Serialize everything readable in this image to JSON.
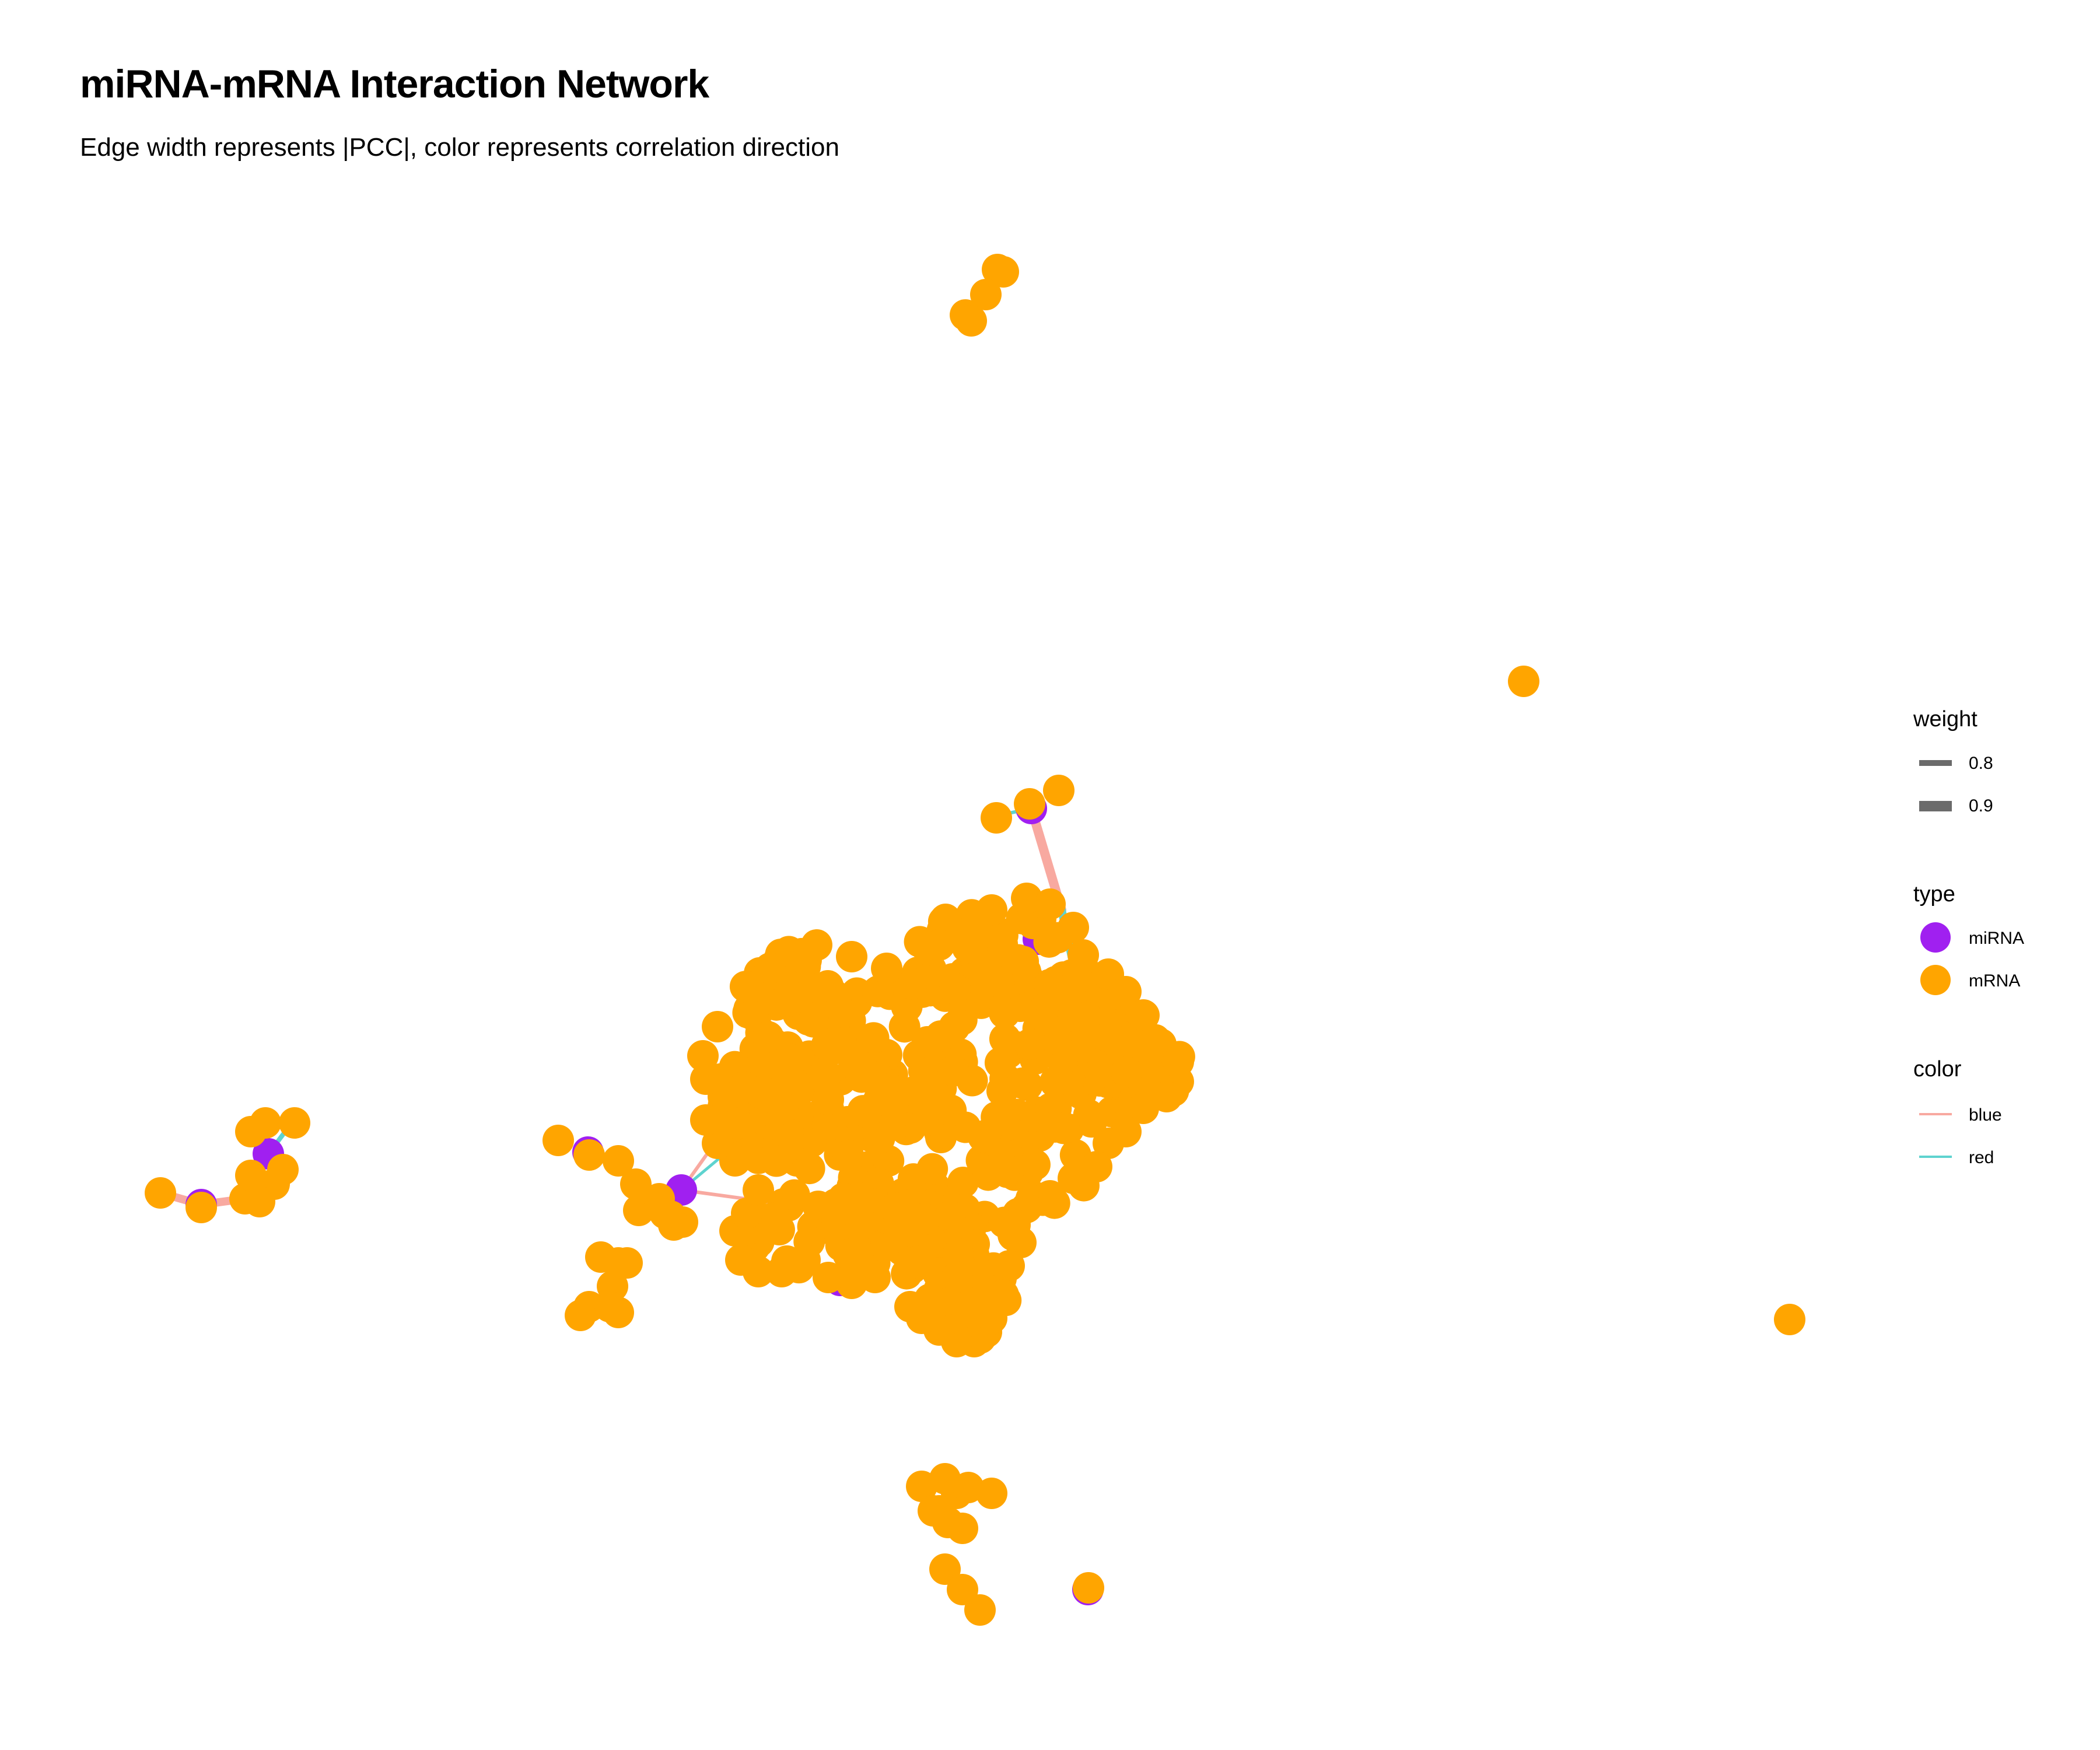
{
  "title": "miRNA-mRNA Interaction Network",
  "subtitle": "Edge width represents |PCC|, color represents correlation direction",
  "colors": {
    "mirna": "#A020F0",
    "mrna": "#FFA500",
    "edge_blue_label": "#F8A9A0",
    "edge_red_label": "#5ED3CF",
    "weight_key": "#6b6b6b"
  },
  "legend": {
    "weight": {
      "title": "weight",
      "entries": [
        {
          "label": "0.8",
          "value": 0.8
        },
        {
          "label": "0.9",
          "value": 0.9
        }
      ]
    },
    "type": {
      "title": "type",
      "entries": [
        {
          "label": "miRNA",
          "color": "#A020F0"
        },
        {
          "label": "mRNA",
          "color": "#FFA500"
        }
      ]
    },
    "color": {
      "title": "color",
      "entries": [
        {
          "label": "blue",
          "color": "#F8A9A0"
        },
        {
          "label": "red",
          "color": "#5ED3CF"
        }
      ]
    }
  }
}
